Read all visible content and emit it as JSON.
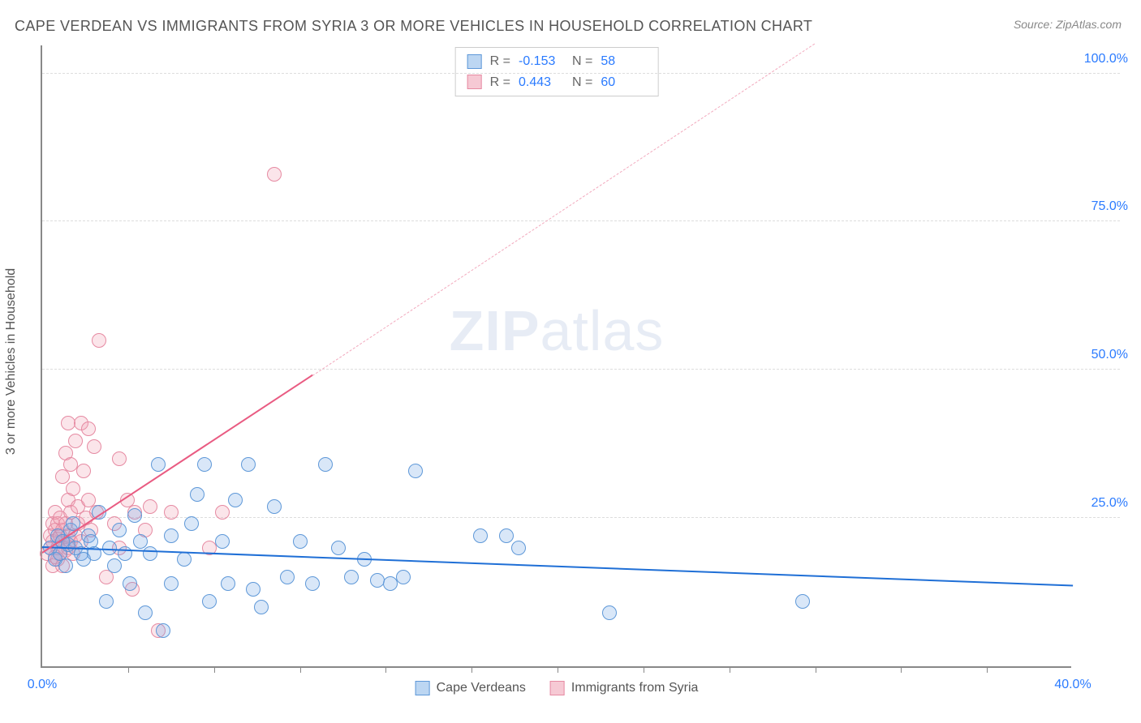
{
  "title": "CAPE VERDEAN VS IMMIGRANTS FROM SYRIA 3 OR MORE VEHICLES IN HOUSEHOLD CORRELATION CHART",
  "source": "Source: ZipAtlas.com",
  "ylabel": "3 or more Vehicles in Household",
  "watermark_a": "ZIP",
  "watermark_b": "atlas",
  "chart": {
    "type": "scatter",
    "xlim": [
      0,
      40
    ],
    "ylim": [
      0,
      105
    ],
    "xticks": [
      0,
      40
    ],
    "xtick_labels": [
      "0.0%",
      "40.0%"
    ],
    "xtick_minor": [
      3.33,
      6.67,
      10,
      13.33,
      16.67,
      20,
      23.33,
      26.67,
      30,
      33.33,
      36.67
    ],
    "yticks": [
      25,
      50,
      75,
      100
    ],
    "ytick_labels": [
      "25.0%",
      "50.0%",
      "75.0%",
      "100.0%"
    ],
    "background_color": "#ffffff",
    "grid_color": "#dddddd",
    "axis_color": "#888888",
    "marker_radius": 9,
    "marker_stroke": 1.5,
    "series": [
      {
        "name": "Cape Verdeans",
        "fill": "rgba(120,170,230,0.28)",
        "stroke": "#5e98d8",
        "legend_fill": "#bcd6f2",
        "legend_stroke": "#5e98d8",
        "R": "-0.153",
        "N": "58",
        "trend": {
          "x1": 0,
          "y1": 20,
          "x2": 40,
          "y2": 13.5,
          "color": "#1f6fd6",
          "width": 2,
          "dash": false
        },
        "points": [
          [
            0.3,
            20
          ],
          [
            0.5,
            18
          ],
          [
            0.6,
            22
          ],
          [
            0.7,
            19
          ],
          [
            0.8,
            21
          ],
          [
            0.9,
            17
          ],
          [
            1.0,
            20.5
          ],
          [
            1.1,
            23
          ],
          [
            1.2,
            24
          ],
          [
            1.3,
            20
          ],
          [
            1.5,
            19
          ],
          [
            1.6,
            18
          ],
          [
            1.8,
            22
          ],
          [
            1.9,
            21
          ],
          [
            2.0,
            19
          ],
          [
            2.2,
            26
          ],
          [
            2.5,
            11
          ],
          [
            2.6,
            20
          ],
          [
            2.8,
            17
          ],
          [
            3.0,
            23
          ],
          [
            3.2,
            19
          ],
          [
            3.4,
            14
          ],
          [
            3.6,
            25.5
          ],
          [
            3.8,
            21
          ],
          [
            4.0,
            9
          ],
          [
            4.2,
            19
          ],
          [
            4.5,
            34
          ],
          [
            4.7,
            6
          ],
          [
            5.0,
            22
          ],
          [
            5.0,
            14
          ],
          [
            5.5,
            18
          ],
          [
            5.8,
            24
          ],
          [
            6.0,
            29
          ],
          [
            6.3,
            34
          ],
          [
            6.5,
            11
          ],
          [
            7.0,
            21
          ],
          [
            7.2,
            14
          ],
          [
            7.5,
            28
          ],
          [
            8.0,
            34
          ],
          [
            8.2,
            13
          ],
          [
            8.5,
            10
          ],
          [
            9.0,
            27
          ],
          [
            9.5,
            15
          ],
          [
            10.0,
            21
          ],
          [
            10.5,
            14
          ],
          [
            11.0,
            34
          ],
          [
            11.5,
            20
          ],
          [
            12.0,
            15
          ],
          [
            12.5,
            18
          ],
          [
            13.0,
            14.5
          ],
          [
            13.5,
            14
          ],
          [
            14.0,
            15
          ],
          [
            14.5,
            33
          ],
          [
            17.0,
            22
          ],
          [
            18.0,
            22
          ],
          [
            18.5,
            20
          ],
          [
            22.0,
            9
          ],
          [
            29.5,
            11
          ]
        ]
      },
      {
        "name": "Immigrants from Syria",
        "fill": "rgba(240,160,180,0.28)",
        "stroke": "#e68aa2",
        "legend_fill": "#f6c9d4",
        "legend_stroke": "#e68aa2",
        "R": "0.443",
        "N": "60",
        "trend_solid": {
          "x1": 0,
          "y1": 19,
          "x2": 10.5,
          "y2": 49,
          "color": "#e95b82",
          "width": 2
        },
        "trend_dash": {
          "x1": 10.5,
          "y1": 49,
          "x2": 30,
          "y2": 105,
          "color": "#f2a9bd",
          "width": 1.5
        },
        "points": [
          [
            0.2,
            19
          ],
          [
            0.3,
            20
          ],
          [
            0.3,
            22
          ],
          [
            0.4,
            21
          ],
          [
            0.4,
            24
          ],
          [
            0.4,
            17
          ],
          [
            0.5,
            18.5
          ],
          [
            0.5,
            23
          ],
          [
            0.5,
            26
          ],
          [
            0.6,
            20
          ],
          [
            0.6,
            21.5
          ],
          [
            0.6,
            24
          ],
          [
            0.6,
            18
          ],
          [
            0.7,
            19
          ],
          [
            0.7,
            22
          ],
          [
            0.7,
            25
          ],
          [
            0.8,
            21
          ],
          [
            0.8,
            17
          ],
          [
            0.8,
            23
          ],
          [
            0.8,
            32
          ],
          [
            0.9,
            19.5
          ],
          [
            0.9,
            24
          ],
          [
            0.9,
            36
          ],
          [
            1.0,
            20
          ],
          [
            1.0,
            22
          ],
          [
            1.0,
            28
          ],
          [
            1.0,
            41
          ],
          [
            1.1,
            21
          ],
          [
            1.1,
            26
          ],
          [
            1.1,
            34
          ],
          [
            1.2,
            19
          ],
          [
            1.2,
            30
          ],
          [
            1.3,
            22
          ],
          [
            1.3,
            38
          ],
          [
            1.4,
            24
          ],
          [
            1.4,
            27
          ],
          [
            1.5,
            21
          ],
          [
            1.5,
            41
          ],
          [
            1.6,
            33
          ],
          [
            1.7,
            25
          ],
          [
            1.8,
            40
          ],
          [
            1.8,
            28
          ],
          [
            1.9,
            23
          ],
          [
            2.0,
            37
          ],
          [
            2.1,
            26
          ],
          [
            2.2,
            55
          ],
          [
            2.5,
            15
          ],
          [
            2.8,
            24
          ],
          [
            3.0,
            35
          ],
          [
            3.0,
            20
          ],
          [
            3.3,
            28
          ],
          [
            3.5,
            13
          ],
          [
            3.6,
            26
          ],
          [
            4.0,
            23
          ],
          [
            4.2,
            27
          ],
          [
            4.5,
            6
          ],
          [
            5.0,
            26
          ],
          [
            6.5,
            20
          ],
          [
            7.0,
            26
          ],
          [
            9.0,
            83
          ]
        ]
      }
    ],
    "legend": {
      "stats_labels": {
        "R": "R =",
        "N": "N ="
      }
    }
  },
  "legend_bottom": [
    {
      "label": "Cape Verdeans"
    },
    {
      "label": "Immigrants from Syria"
    }
  ]
}
